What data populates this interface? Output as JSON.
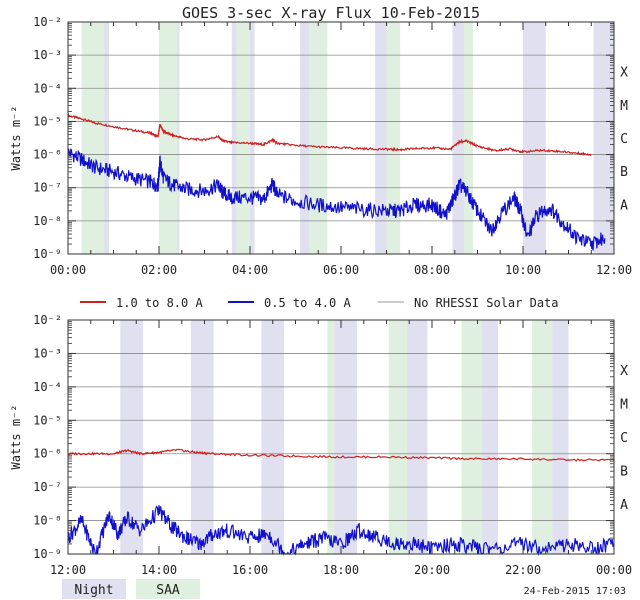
{
  "title": "GOES 3-sec X-ray Flux   10-Feb-2015",
  "footer_date": "24-Feb-2015 17:03",
  "colors": {
    "long_channel": "#cc2222",
    "short_channel": "#1111cc",
    "no_rhessi": "#999999",
    "night": "#e0e0f0",
    "saa": "#e0f0e0"
  },
  "legend": {
    "long": "1.0 to 8.0 A",
    "short": "0.5 to 4.0 A",
    "no_rhessi": "No RHESSI Solar Data"
  },
  "bottom_legend": {
    "night": "Night",
    "saa": "SAA"
  },
  "chart_data": [
    {
      "type": "line",
      "y_scale": "log",
      "ylabel": "Watts m⁻²",
      "ylim": [
        1e-09,
        0.01
      ],
      "y_ticks": [
        "10⁻²",
        "10⁻³",
        "10⁻⁴",
        "10⁻⁵",
        "10⁻⁶",
        "10⁻⁷",
        "10⁻⁸",
        "10⁻⁹"
      ],
      "class_labels": [
        "X",
        "M",
        "C",
        "B",
        "A"
      ],
      "xlim_hours": [
        0,
        12
      ],
      "x_ticks": [
        "00:00",
        "02:00",
        "04:00",
        "06:00",
        "08:00",
        "10:00",
        "12:00"
      ],
      "night_bands_hours": [
        [
          0.35,
          0.9
        ],
        [
          2.1,
          2.45
        ],
        [
          3.6,
          4.1
        ],
        [
          5.1,
          5.65
        ],
        [
          6.75,
          7.05
        ],
        [
          8.45,
          8.9
        ],
        [
          10.0,
          10.5
        ],
        [
          11.55,
          12.0
        ]
      ],
      "saa_bands_hours": [
        [
          0.3,
          0.8
        ],
        [
          2.0,
          2.4
        ],
        [
          3.7,
          4.0
        ],
        [
          5.3,
          5.7
        ],
        [
          7.0,
          7.3
        ],
        [
          8.7,
          8.9
        ]
      ],
      "series": [
        {
          "name": "1.0 to 8.0 A",
          "x": [
            0.0,
            0.3,
            0.6,
            1.0,
            1.4,
            1.8,
            1.98,
            2.02,
            2.1,
            2.3,
            2.6,
            3.0,
            3.3,
            3.4,
            3.6,
            4.0,
            4.3,
            4.5,
            4.6,
            5.0,
            5.5,
            6.0,
            6.5,
            7.0,
            7.3,
            7.6,
            8.0,
            8.4,
            8.6,
            8.75,
            9.0,
            9.4,
            9.7,
            10.0,
            10.4,
            10.8,
            11.2,
            11.5
          ],
          "y": [
            1.5e-05,
            1.2e-05,
            9e-06,
            7e-06,
            5.5e-06,
            4.5e-06,
            3.5e-06,
            8e-06,
            5e-06,
            3.8e-06,
            3e-06,
            2.8e-06,
            3.5e-06,
            2.6e-06,
            2.3e-06,
            2.2e-06,
            2e-06,
            2.8e-06,
            2.2e-06,
            1.9e-06,
            1.7e-06,
            1.6e-06,
            1.5e-06,
            1.45e-06,
            1.4e-06,
            1.5e-06,
            1.6e-06,
            1.45e-06,
            2.4e-06,
            2.6e-06,
            1.8e-06,
            1.3e-06,
            1.5e-06,
            1.2e-06,
            1.35e-06,
            1.25e-06,
            1.1e-06,
            1e-06
          ]
        },
        {
          "name": "0.5 to 4.0 A",
          "x": [
            0.0,
            0.3,
            0.6,
            1.0,
            1.4,
            1.8,
            1.98,
            2.02,
            2.1,
            2.3,
            2.6,
            3.0,
            3.3,
            3.4,
            3.6,
            4.0,
            4.3,
            4.5,
            4.6,
            5.0,
            5.5,
            6.0,
            6.5,
            7.0,
            7.3,
            7.6,
            8.0,
            8.3,
            8.45,
            8.6,
            8.75,
            9.0,
            9.3,
            9.5,
            9.8,
            9.95,
            10.1,
            10.3,
            10.6,
            10.9,
            11.2,
            11.5,
            11.8
          ],
          "y": [
            1.2e-06,
            7e-07,
            4e-07,
            3e-07,
            2e-07,
            1.5e-07,
            1.2e-07,
            6e-07,
            2e-07,
            1.2e-07,
            9e-08,
            8e-08,
            1.2e-07,
            7e-08,
            5e-08,
            5e-08,
            4.5e-08,
            1.3e-07,
            6e-08,
            4e-08,
            3e-08,
            2.5e-08,
            2.2e-08,
            2e-08,
            2e-08,
            3e-08,
            3e-08,
            1.5e-08,
            4e-08,
            1.2e-07,
            8e-08,
            2e-08,
            5e-09,
            1.5e-08,
            5e-08,
            2e-08,
            3e-09,
            1.5e-08,
            2.5e-08,
            8e-09,
            3e-09,
            2e-09,
            3e-09
          ]
        }
      ]
    },
    {
      "type": "line",
      "y_scale": "log",
      "ylabel": "Watts m⁻²",
      "ylim": [
        1e-09,
        0.01
      ],
      "y_ticks": [
        "10⁻²",
        "10⁻³",
        "10⁻⁴",
        "10⁻⁵",
        "10⁻⁶",
        "10⁻⁷",
        "10⁻⁸",
        "10⁻⁹"
      ],
      "class_labels": [
        "X",
        "M",
        "C",
        "B",
        "A"
      ],
      "xlim_hours": [
        12,
        24
      ],
      "x_ticks": [
        "12:00",
        "14:00",
        "16:00",
        "18:00",
        "20:00",
        "22:00",
        "00:00"
      ],
      "night_bands_hours": [
        [
          13.15,
          13.65
        ],
        [
          14.7,
          15.2
        ],
        [
          16.25,
          16.75
        ],
        [
          17.85,
          18.35
        ],
        [
          19.45,
          19.9
        ],
        [
          21.05,
          21.45
        ],
        [
          22.6,
          23.0
        ]
      ],
      "saa_bands_hours": [
        [
          19.05,
          19.45
        ],
        [
          20.65,
          21.1
        ],
        [
          22.2,
          22.65
        ],
        [
          17.7,
          17.85
        ]
      ],
      "series": [
        {
          "name": "1.0 to 8.0 A",
          "x": [
            12.0,
            12.5,
            13.0,
            13.3,
            13.6,
            14.0,
            14.4,
            14.8,
            15.2,
            16.0,
            17.0,
            18.0,
            19.0,
            20.0,
            21.0,
            22.0,
            23.0,
            24.0
          ],
          "y": [
            1e-06,
            1e-06,
            1e-06,
            1.25e-06,
            1e-06,
            1.1e-06,
            1.3e-06,
            1.1e-06,
            1e-06,
            9e-07,
            8.5e-07,
            8e-07,
            8e-07,
            7.5e-07,
            7e-07,
            7e-07,
            6.5e-07,
            6.5e-07
          ]
        },
        {
          "name": "0.5 to 4.0 A",
          "x": [
            12.0,
            12.3,
            12.6,
            12.9,
            13.1,
            13.3,
            13.6,
            14.0,
            14.3,
            14.6,
            14.9,
            15.2,
            15.5,
            16.0,
            16.4,
            16.8,
            17.2,
            17.6,
            18.0,
            18.4,
            18.8,
            19.2,
            19.6,
            20.0,
            20.5,
            21.0,
            21.5,
            22.0,
            22.5,
            23.0,
            23.5,
            24.0
          ],
          "y": [
            3e-09,
            1e-08,
            1e-09,
            1.5e-08,
            4e-09,
            1.2e-08,
            5e-09,
            2e-08,
            6e-09,
            3e-09,
            2e-09,
            4e-09,
            5e-09,
            3e-09,
            4e-09,
            1e-09,
            2e-09,
            3e-09,
            2e-09,
            5e-09,
            3e-09,
            2e-09,
            2e-09,
            1.5e-09,
            2e-09,
            1.5e-09,
            1.5e-09,
            2e-09,
            1.5e-09,
            2e-09,
            1.5e-09,
            2e-09
          ]
        }
      ]
    }
  ]
}
